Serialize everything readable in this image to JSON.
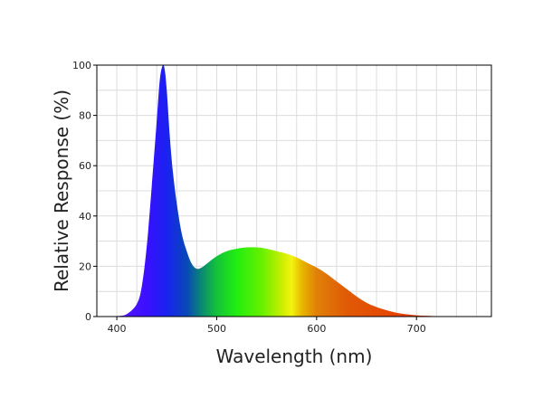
{
  "chart_data": {
    "type": "area",
    "title": "",
    "xlabel": "Wavelength (nm)",
    "ylabel": "Relative Response (%)",
    "xlim": [
      380,
      775
    ],
    "ylim": [
      0,
      100
    ],
    "grid": true,
    "x_major_ticks": [
      400,
      500,
      600,
      700
    ],
    "x_major_tick_labels": [
      "400",
      "500",
      "600",
      "700"
    ],
    "x_minor_step": 20,
    "y_ticks": [
      0,
      20,
      40,
      60,
      80,
      100
    ],
    "y_tick_labels": [
      "0",
      "20",
      "40",
      "60",
      "80",
      "100"
    ],
    "series": [
      {
        "x": [
          380,
          400,
          410,
          420,
          425,
          430,
          435,
          440,
          443,
          446,
          448,
          450,
          453,
          456,
          460,
          465,
          470,
          475,
          480,
          485,
          490,
          500,
          510,
          520,
          530,
          540,
          550,
          560,
          570,
          580,
          590,
          600,
          610,
          620,
          630,
          640,
          650,
          660,
          670,
          680,
          690,
          700,
          710,
          720,
          730,
          740
        ],
        "y": [
          0,
          0.2,
          1,
          5,
          12,
          28,
          52,
          78,
          94,
          100,
          98,
          90,
          72,
          58,
          45,
          33,
          26,
          21,
          19,
          19.5,
          21,
          24,
          26,
          27,
          27.5,
          27.5,
          27,
          26,
          25,
          23.5,
          21.5,
          19.5,
          17,
          14,
          11,
          8,
          5.5,
          3.8,
          2.5,
          1.5,
          0.9,
          0.5,
          0.3,
          0.15,
          0.05,
          0
        ],
        "fill": "visible-spectrum"
      }
    ],
    "spectrum_gradient": [
      {
        "nm": 400,
        "color": "#5a16ff"
      },
      {
        "nm": 430,
        "color": "#3a10ff"
      },
      {
        "nm": 450,
        "color": "#1a22f0"
      },
      {
        "nm": 470,
        "color": "#0848b8"
      },
      {
        "nm": 485,
        "color": "#0a8a72"
      },
      {
        "nm": 500,
        "color": "#14c23a"
      },
      {
        "nm": 520,
        "color": "#22ee10"
      },
      {
        "nm": 545,
        "color": "#66f000"
      },
      {
        "nm": 565,
        "color": "#c8ee00"
      },
      {
        "nm": 575,
        "color": "#f4f410"
      },
      {
        "nm": 585,
        "color": "#e8b800"
      },
      {
        "nm": 600,
        "color": "#e08008"
      },
      {
        "nm": 630,
        "color": "#e05a06"
      },
      {
        "nm": 700,
        "color": "#e83a00"
      },
      {
        "nm": 740,
        "color": "#e83000"
      }
    ]
  }
}
